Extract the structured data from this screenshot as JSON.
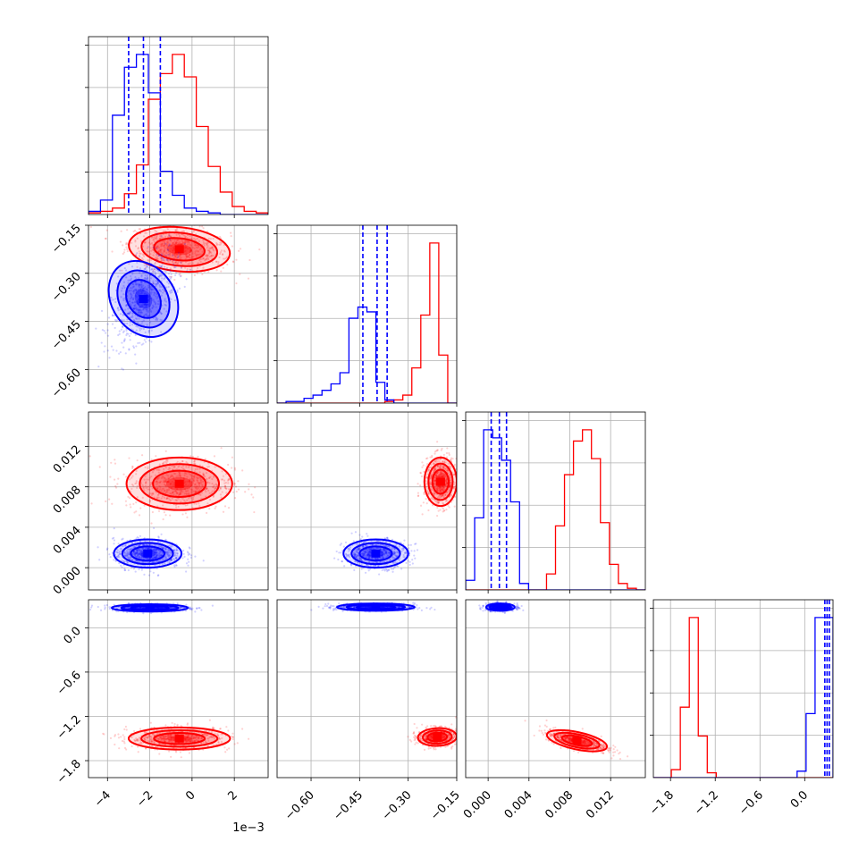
{
  "chart_data": {
    "type": "corner",
    "colors": {
      "series_a": "#ff0000",
      "series_b": "#0000ff"
    },
    "grid": true,
    "x_offset_label": "1e−3",
    "parameters": [
      {
        "range": [
          -4.9,
          3.6
        ],
        "ticks": [
          -4,
          -2,
          0,
          2
        ],
        "tick_labels": [
          "−4",
          "−2",
          "0",
          "2"
        ]
      },
      {
        "range": [
          -0.705,
          -0.15
        ],
        "ticks": [
          -0.6,
          -0.45,
          -0.3,
          -0.15
        ],
        "tick_labels": [
          "−0.60",
          "−0.45",
          "−0.30",
          "−0.15"
        ]
      },
      {
        "range": [
          -0.0022,
          0.0154
        ],
        "ticks": [
          0.0,
          0.004,
          0.008,
          0.012
        ],
        "tick_labels": [
          "0.000",
          "0.004",
          "0.008",
          "0.012"
        ]
      },
      {
        "range": [
          -2.03,
          0.38
        ],
        "ticks": [
          -1.8,
          -1.2,
          -0.6,
          0.0
        ],
        "tick_labels": [
          "−1.8",
          "−1.2",
          "−0.6",
          "0.0"
        ]
      }
    ],
    "series_a_marginals": [
      {
        "values": [
          0.01,
          0.02,
          0.04,
          0.13,
          0.31,
          0.72,
          0.88,
          1.0,
          0.86,
          0.55,
          0.3,
          0.14,
          0.05,
          0.02,
          0.01
        ]
      },
      {
        "values": [
          0,
          0,
          0,
          0,
          0,
          0,
          0,
          0,
          0,
          0,
          0,
          0,
          0.01,
          0.02,
          0.05,
          0.22,
          0.55,
          1.0,
          0.3,
          0
        ]
      },
      {
        "values": [
          0,
          0,
          0,
          0,
          0,
          0,
          0,
          0,
          0,
          0.1,
          0.4,
          0.72,
          0.93,
          1.0,
          0.82,
          0.42,
          0.16,
          0.04,
          0.01,
          0
        ]
      },
      {
        "values": [
          0,
          0,
          0.05,
          0.44,
          1.0,
          0.26,
          0.03,
          0,
          0,
          0,
          0,
          0,
          0,
          0,
          0,
          0,
          0,
          0,
          0,
          0
        ]
      }
    ],
    "series_b_marginals": [
      {
        "values": [
          0.02,
          0.09,
          0.62,
          0.92,
          1.0,
          0.76,
          0.27,
          0.12,
          0.04,
          0.02,
          0.01,
          0,
          0,
          0,
          0
        ]
      },
      {
        "values": [
          0,
          0.01,
          0.01,
          0.03,
          0.05,
          0.08,
          0.12,
          0.19,
          0.53,
          0.6,
          0.57,
          0.13,
          0.02,
          0,
          0,
          0,
          0,
          0,
          0,
          0
        ]
      },
      {
        "values": [
          0.06,
          0.45,
          1.0,
          0.95,
          0.81,
          0.55,
          0.04,
          0,
          0,
          0,
          0,
          0,
          0,
          0,
          0,
          0,
          0,
          0,
          0,
          0
        ]
      },
      {
        "values": [
          0,
          0,
          0,
          0,
          0,
          0,
          0,
          0,
          0,
          0,
          0,
          0,
          0,
          0,
          0,
          0,
          0.04,
          0.4,
          1.0,
          1.0
        ]
      }
    ],
    "quantile_lines_b": [
      [
        -3.0,
        -2.3,
        -1.5
      ],
      [
        -0.44,
        -0.396,
        -0.365
      ],
      [
        0.0003,
        0.0011,
        0.0018
      ],
      [
        0.27,
        0.3,
        0.33
      ]
    ],
    "series_a_pairs": [
      {
        "x_param": 0,
        "y_param": 1,
        "mean": [
          -0.6,
          -0.225
        ],
        "sd": [
          1.2,
          0.035
        ],
        "rho": -0.25
      },
      {
        "x_param": 0,
        "y_param": 2,
        "mean": [
          -0.6,
          0.0083
        ],
        "sd": [
          1.25,
          0.0013
        ],
        "rho": 0.0
      },
      {
        "x_param": 0,
        "y_param": 3,
        "mean": [
          -0.6,
          -1.5
        ],
        "sd": [
          1.2,
          0.075
        ],
        "rho": 0.0
      },
      {
        "x_param": 1,
        "y_param": 2,
        "mean": [
          -0.2,
          0.0085
        ],
        "sd": [
          0.025,
          0.0012
        ],
        "rho": 0.0
      },
      {
        "x_param": 1,
        "y_param": 3,
        "mean": [
          -0.21,
          -1.48
        ],
        "sd": [
          0.03,
          0.06
        ],
        "rho": 0.1
      },
      {
        "x_param": 2,
        "y_param": 3,
        "mean": [
          0.0087,
          -1.53
        ],
        "sd": [
          0.0015,
          0.07
        ],
        "rho": -0.7
      }
    ],
    "series_b_pairs": [
      {
        "x_param": 0,
        "y_param": 1,
        "mean": [
          -2.3,
          -0.38
        ],
        "sd": [
          0.75,
          0.07
        ],
        "rho": 0.55
      },
      {
        "x_param": 0,
        "y_param": 2,
        "mean": [
          -2.1,
          0.0014
        ],
        "sd": [
          0.8,
          0.0007
        ],
        "rho": 0.0
      },
      {
        "x_param": 0,
        "y_param": 3,
        "mean": [
          -2.0,
          0.27
        ],
        "sd": [
          0.9,
          0.025
        ],
        "rho": 0.0
      },
      {
        "x_param": 1,
        "y_param": 2,
        "mean": [
          -0.4,
          0.0014
        ],
        "sd": [
          0.05,
          0.0007
        ],
        "rho": 0.0
      },
      {
        "x_param": 1,
        "y_param": 3,
        "mean": [
          -0.4,
          0.28
        ],
        "sd": [
          0.06,
          0.025
        ],
        "rho": 0.0
      },
      {
        "x_param": 2,
        "y_param": 3,
        "mean": [
          0.0012,
          0.28
        ],
        "sd": [
          0.0007,
          0.025
        ],
        "rho": 0.0
      }
    ]
  }
}
